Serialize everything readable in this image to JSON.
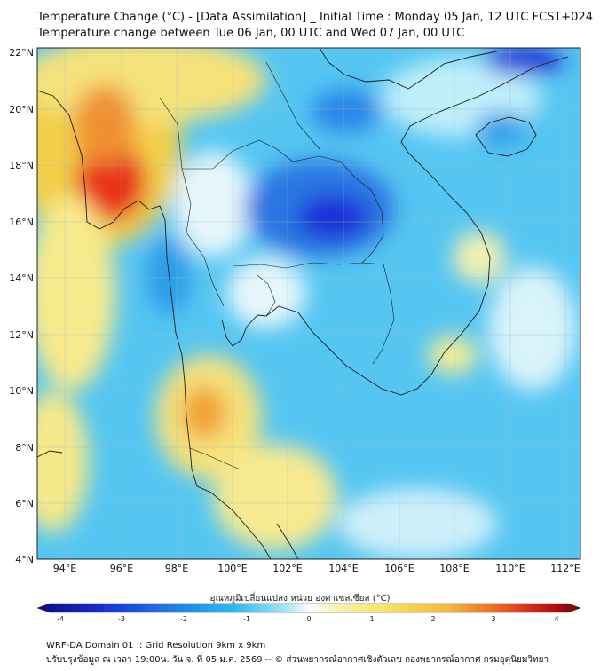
{
  "header": {
    "title_line1": "Temperature Change (°C) - [Data Assimilation] _ Initial Time : Monday 05 Jan, 12 UTC FCST+024",
    "title_line2": "Temperature change between Tue 06 Jan, 00 UTC and Wed 07 Jan, 00 UTC"
  },
  "map": {
    "lat_labels": [
      "22°N",
      "20°N",
      "18°N",
      "16°N",
      "14°N",
      "12°N",
      "10°N",
      "8°N",
      "6°N",
      "4°N"
    ],
    "lon_labels": [
      "94°E",
      "96°E",
      "98°E",
      "100°E",
      "102°E",
      "104°E",
      "106°E",
      "108°E",
      "110°E",
      "112°E"
    ],
    "lat_range": [
      4,
      22
    ],
    "lon_range": [
      93,
      112.6
    ]
  },
  "colorbar": {
    "label": "อุณหภูมิเปลี่ยนแปลง หน่วย องศาเซลเซียส (°C)",
    "ticks": [
      "-4",
      "-3",
      "-2",
      "-1",
      "0",
      "1",
      "2",
      "3",
      "4"
    ],
    "range": [
      -4,
      4
    ]
  },
  "footer": {
    "line1": "WRF-DA Domain 01 :: Grid Resolution 9km x 9km",
    "line2": "ปรับปรุงข้อมูล ณ เวลา 19:00น. วัน จ. ที่ 05 ม.ค. 2569 -- © ส่วนพยากรณ์อากาศเชิงตัวเลข กองพยากรณ์อากาศ กรมอุตุนิยมวิทยา"
  },
  "colors": {
    "cold_strong": "#1a2fd6",
    "cold": "#2aa0ea",
    "cool": "#7fd6f5",
    "neutral": "#eaf7fb",
    "warm": "#f7ef8a",
    "warmer": "#f5c542",
    "hot": "#e8331a"
  }
}
